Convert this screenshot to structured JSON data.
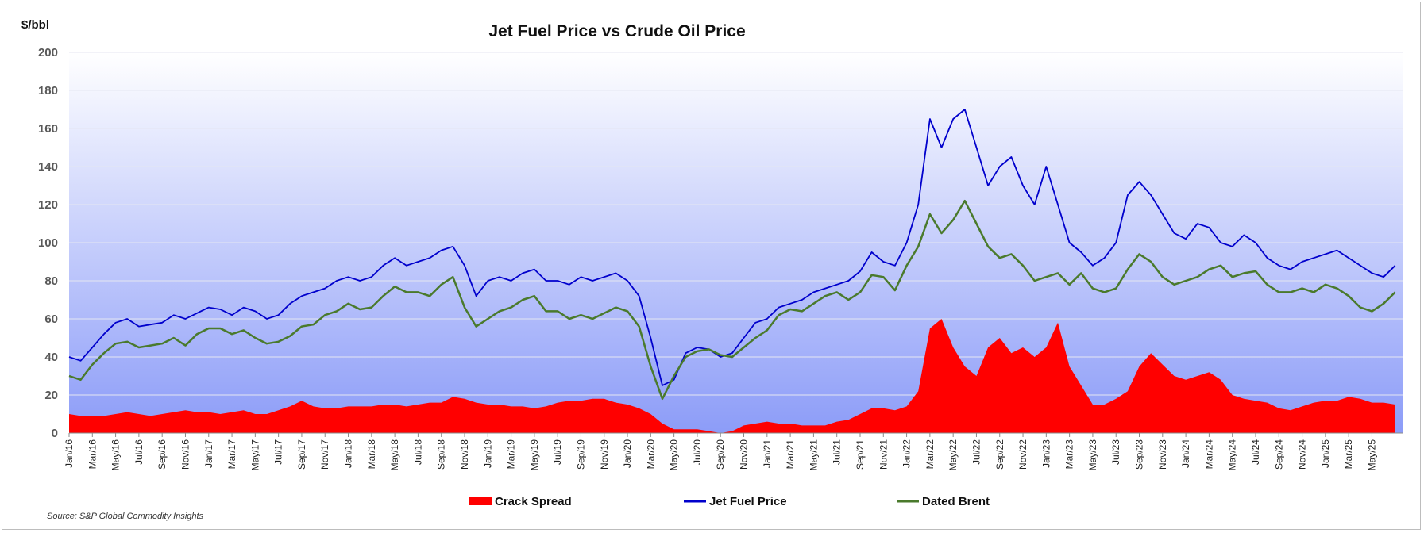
{
  "chart_data": {
    "type": "area",
    "title": "Jet Fuel Price vs Crude Oil Price",
    "ylabel": "$/bbl",
    "ylim": [
      0,
      200
    ],
    "yticks": [
      0,
      20,
      40,
      60,
      80,
      100,
      120,
      140,
      160,
      180,
      200
    ],
    "xticks": [
      "Jan/16",
      "Mar/16",
      "May/16",
      "Jul/16",
      "Sep/16",
      "Nov/16",
      "Jan/17",
      "Mar/17",
      "May/17",
      "Jul/17",
      "Sep/17",
      "Nov/17",
      "Jan/18",
      "Mar/18",
      "May/18",
      "Jul/18",
      "Sep/18",
      "Nov/18",
      "Jan/19",
      "Mar/19",
      "May/19",
      "Jul/19",
      "Sep/19",
      "Nov/19",
      "Jan/20",
      "Mar/20",
      "May/20",
      "Jul/20",
      "Sep/20",
      "Nov/20",
      "Jan/21",
      "Mar/21",
      "May/21",
      "Jul/21",
      "Sep/21",
      "Nov/21",
      "Jan/22",
      "Mar/22",
      "May/22",
      "Jul/22",
      "Sep/22",
      "Nov/22",
      "Jan/23",
      "Mar/23",
      "May/23",
      "Jul/23",
      "Sep/23",
      "Nov/23",
      "Jan/24",
      "Mar/24",
      "May/24",
      "Jul/24",
      "Sep/24",
      "Nov/24",
      "Jan/25",
      "Mar/25",
      "May/25"
    ],
    "grid": true,
    "legend_position": "bottom",
    "background_gradient": [
      "#ffffff",
      "#8c9cf8"
    ],
    "series": [
      {
        "name": "Crack Spread",
        "kind": "area",
        "color": "#ff0000",
        "x": [
          "2016-01",
          "2016-02",
          "2016-03",
          "2016-04",
          "2016-05",
          "2016-06",
          "2016-07",
          "2016-08",
          "2016-09",
          "2016-10",
          "2016-11",
          "2016-12",
          "2017-01",
          "2017-02",
          "2017-03",
          "2017-04",
          "2017-05",
          "2017-06",
          "2017-07",
          "2017-08",
          "2017-09",
          "2017-10",
          "2017-11",
          "2017-12",
          "2018-01",
          "2018-02",
          "2018-03",
          "2018-04",
          "2018-05",
          "2018-06",
          "2018-07",
          "2018-08",
          "2018-09",
          "2018-10",
          "2018-11",
          "2018-12",
          "2019-01",
          "2019-02",
          "2019-03",
          "2019-04",
          "2019-05",
          "2019-06",
          "2019-07",
          "2019-08",
          "2019-09",
          "2019-10",
          "2019-11",
          "2019-12",
          "2020-01",
          "2020-02",
          "2020-03",
          "2020-04",
          "2020-05",
          "2020-06",
          "2020-07",
          "2020-08",
          "2020-09",
          "2020-10",
          "2020-11",
          "2020-12",
          "2021-01",
          "2021-02",
          "2021-03",
          "2021-04",
          "2021-05",
          "2021-06",
          "2021-07",
          "2021-08",
          "2021-09",
          "2021-10",
          "2021-11",
          "2021-12",
          "2022-01",
          "2022-02",
          "2022-03",
          "2022-04",
          "2022-05",
          "2022-06",
          "2022-07",
          "2022-08",
          "2022-09",
          "2022-10",
          "2022-11",
          "2022-12",
          "2023-01",
          "2023-02",
          "2023-03",
          "2023-04",
          "2023-05",
          "2023-06",
          "2023-07",
          "2023-08",
          "2023-09",
          "2023-10",
          "2023-11",
          "2023-12",
          "2024-01",
          "2024-02",
          "2024-03",
          "2024-04",
          "2024-05",
          "2024-06",
          "2024-07",
          "2024-08",
          "2024-09",
          "2024-10",
          "2024-11",
          "2024-12",
          "2025-01",
          "2025-02",
          "2025-03",
          "2025-04",
          "2025-05",
          "2025-06",
          "2025-07"
        ],
        "values": [
          10,
          9,
          9,
          9,
          10,
          11,
          10,
          9,
          10,
          11,
          12,
          11,
          11,
          10,
          11,
          12,
          10,
          10,
          12,
          14,
          17,
          14,
          13,
          13,
          14,
          14,
          14,
          15,
          15,
          14,
          15,
          16,
          16,
          19,
          18,
          16,
          15,
          15,
          14,
          14,
          13,
          14,
          16,
          17,
          17,
          18,
          18,
          16,
          15,
          13,
          10,
          5,
          2,
          2,
          2,
          1,
          0,
          1,
          4,
          5,
          6,
          5,
          5,
          4,
          4,
          4,
          6,
          7,
          10,
          13,
          13,
          12,
          14,
          22,
          55,
          60,
          45,
          35,
          30,
          45,
          50,
          42,
          45,
          40,
          45,
          58,
          35,
          25,
          15,
          15,
          18,
          22,
          35,
          42,
          36,
          30,
          28,
          30,
          32,
          28,
          20,
          18,
          17,
          16,
          13,
          12,
          14,
          16,
          17,
          17,
          19,
          18,
          16,
          16,
          15
        ]
      },
      {
        "name": "Jet Fuel Price",
        "kind": "line",
        "color": "#0000cc",
        "x": [
          "2016-01",
          "2016-02",
          "2016-03",
          "2016-04",
          "2016-05",
          "2016-06",
          "2016-07",
          "2016-08",
          "2016-09",
          "2016-10",
          "2016-11",
          "2016-12",
          "2017-01",
          "2017-02",
          "2017-03",
          "2017-04",
          "2017-05",
          "2017-06",
          "2017-07",
          "2017-08",
          "2017-09",
          "2017-10",
          "2017-11",
          "2017-12",
          "2018-01",
          "2018-02",
          "2018-03",
          "2018-04",
          "2018-05",
          "2018-06",
          "2018-07",
          "2018-08",
          "2018-09",
          "2018-10",
          "2018-11",
          "2018-12",
          "2019-01",
          "2019-02",
          "2019-03",
          "2019-04",
          "2019-05",
          "2019-06",
          "2019-07",
          "2019-08",
          "2019-09",
          "2019-10",
          "2019-11",
          "2019-12",
          "2020-01",
          "2020-02",
          "2020-03",
          "2020-04",
          "2020-05",
          "2020-06",
          "2020-07",
          "2020-08",
          "2020-09",
          "2020-10",
          "2020-11",
          "2020-12",
          "2021-01",
          "2021-02",
          "2021-03",
          "2021-04",
          "2021-05",
          "2021-06",
          "2021-07",
          "2021-08",
          "2021-09",
          "2021-10",
          "2021-11",
          "2021-12",
          "2022-01",
          "2022-02",
          "2022-03",
          "2022-04",
          "2022-05",
          "2022-06",
          "2022-07",
          "2022-08",
          "2022-09",
          "2022-10",
          "2022-11",
          "2022-12",
          "2023-01",
          "2023-02",
          "2023-03",
          "2023-04",
          "2023-05",
          "2023-06",
          "2023-07",
          "2023-08",
          "2023-09",
          "2023-10",
          "2023-11",
          "2023-12",
          "2024-01",
          "2024-02",
          "2024-03",
          "2024-04",
          "2024-05",
          "2024-06",
          "2024-07",
          "2024-08",
          "2024-09",
          "2024-10",
          "2024-11",
          "2024-12",
          "2025-01",
          "2025-02",
          "2025-03",
          "2025-04",
          "2025-05",
          "2025-06",
          "2025-07"
        ],
        "values": [
          40,
          38,
          45,
          52,
          58,
          60,
          56,
          57,
          58,
          62,
          60,
          63,
          66,
          65,
          62,
          66,
          64,
          60,
          62,
          68,
          72,
          74,
          76,
          80,
          82,
          80,
          82,
          88,
          92,
          88,
          90,
          92,
          96,
          98,
          88,
          72,
          80,
          82,
          80,
          84,
          86,
          80,
          80,
          78,
          82,
          80,
          82,
          84,
          80,
          72,
          50,
          25,
          28,
          42,
          45,
          44,
          40,
          42,
          50,
          58,
          60,
          66,
          68,
          70,
          74,
          76,
          78,
          80,
          85,
          95,
          90,
          88,
          100,
          120,
          165,
          150,
          165,
          170,
          150,
          130,
          140,
          145,
          130,
          120,
          140,
          120,
          100,
          95,
          88,
          92,
          100,
          125,
          132,
          125,
          115,
          105,
          102,
          110,
          108,
          100,
          98,
          104,
          100,
          92,
          88,
          86,
          90,
          92,
          94,
          96,
          92,
          88,
          84,
          82,
          88
        ]
      },
      {
        "name": "Dated Brent",
        "kind": "line",
        "color": "#4a7a2c",
        "x": [
          "2016-01",
          "2016-02",
          "2016-03",
          "2016-04",
          "2016-05",
          "2016-06",
          "2016-07",
          "2016-08",
          "2016-09",
          "2016-10",
          "2016-11",
          "2016-12",
          "2017-01",
          "2017-02",
          "2017-03",
          "2017-04",
          "2017-05",
          "2017-06",
          "2017-07",
          "2017-08",
          "2017-09",
          "2017-10",
          "2017-11",
          "2017-12",
          "2018-01",
          "2018-02",
          "2018-03",
          "2018-04",
          "2018-05",
          "2018-06",
          "2018-07",
          "2018-08",
          "2018-09",
          "2018-10",
          "2018-11",
          "2018-12",
          "2019-01",
          "2019-02",
          "2019-03",
          "2019-04",
          "2019-05",
          "2019-06",
          "2019-07",
          "2019-08",
          "2019-09",
          "2019-10",
          "2019-11",
          "2019-12",
          "2020-01",
          "2020-02",
          "2020-03",
          "2020-04",
          "2020-05",
          "2020-06",
          "2020-07",
          "2020-08",
          "2020-09",
          "2020-10",
          "2020-11",
          "2020-12",
          "2021-01",
          "2021-02",
          "2021-03",
          "2021-04",
          "2021-05",
          "2021-06",
          "2021-07",
          "2021-08",
          "2021-09",
          "2021-10",
          "2021-11",
          "2021-12",
          "2022-01",
          "2022-02",
          "2022-03",
          "2022-04",
          "2022-05",
          "2022-06",
          "2022-07",
          "2022-08",
          "2022-09",
          "2022-10",
          "2022-11",
          "2022-12",
          "2023-01",
          "2023-02",
          "2023-03",
          "2023-04",
          "2023-05",
          "2023-06",
          "2023-07",
          "2023-08",
          "2023-09",
          "2023-10",
          "2023-11",
          "2023-12",
          "2024-01",
          "2024-02",
          "2024-03",
          "2024-04",
          "2024-05",
          "2024-06",
          "2024-07",
          "2024-08",
          "2024-09",
          "2024-10",
          "2024-11",
          "2024-12",
          "2025-01",
          "2025-02",
          "2025-03",
          "2025-04",
          "2025-05",
          "2025-06",
          "2025-07"
        ],
        "values": [
          30,
          28,
          36,
          42,
          47,
          48,
          45,
          46,
          47,
          50,
          46,
          52,
          55,
          55,
          52,
          54,
          50,
          47,
          48,
          51,
          56,
          57,
          62,
          64,
          68,
          65,
          66,
          72,
          77,
          74,
          74,
          72,
          78,
          82,
          66,
          56,
          60,
          64,
          66,
          70,
          72,
          64,
          64,
          60,
          62,
          60,
          63,
          66,
          64,
          56,
          35,
          18,
          30,
          40,
          43,
          44,
          41,
          40,
          45,
          50,
          54,
          62,
          65,
          64,
          68,
          72,
          74,
          70,
          74,
          83,
          82,
          75,
          88,
          98,
          115,
          105,
          112,
          122,
          110,
          98,
          92,
          94,
          88,
          80,
          82,
          84,
          78,
          84,
          76,
          74,
          76,
          86,
          94,
          90,
          82,
          78,
          80,
          82,
          86,
          88,
          82,
          84,
          85,
          78,
          74,
          74,
          76,
          74,
          78,
          76,
          72,
          66,
          64,
          68,
          74
        ]
      }
    ],
    "source": "Source: S&P Global Commodity Insights"
  }
}
